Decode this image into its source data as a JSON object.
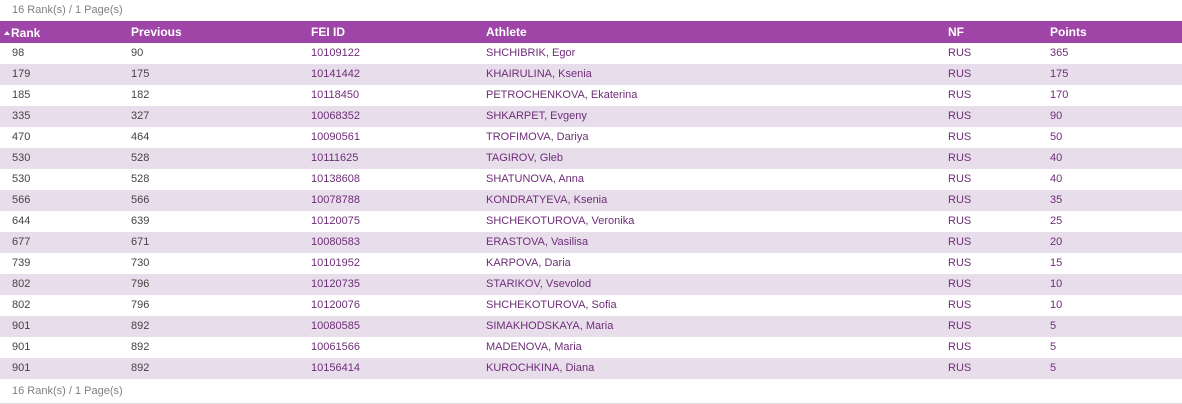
{
  "summary_text": "16 Rank(s) / 1 Page(s)",
  "accent_color": "#9f45a8",
  "sort": {
    "column": "Rank",
    "direction": "ascending",
    "icon": "sort-up-icon"
  },
  "columns": {
    "rank": "Rank",
    "previous": "Previous",
    "fei_id": "FEI ID",
    "athlete": "Athlete",
    "nf": "NF",
    "points": "Points"
  },
  "rows": [
    {
      "rank": "98",
      "previous": "90",
      "fei_id": "10109122",
      "athlete": "SHCHIBRIK, Egor",
      "nf": "RUS",
      "points": "365"
    },
    {
      "rank": "179",
      "previous": "175",
      "fei_id": "10141442",
      "athlete": "KHAIRULINA, Ksenia",
      "nf": "RUS",
      "points": "175"
    },
    {
      "rank": "185",
      "previous": "182",
      "fei_id": "10118450",
      "athlete": "PETROCHENKOVA, Ekaterina",
      "nf": "RUS",
      "points": "170"
    },
    {
      "rank": "335",
      "previous": "327",
      "fei_id": "10068352",
      "athlete": "SHKARPET, Evgeny",
      "nf": "RUS",
      "points": "90"
    },
    {
      "rank": "470",
      "previous": "464",
      "fei_id": "10090561",
      "athlete": "TROFIMOVA, Dariya",
      "nf": "RUS",
      "points": "50"
    },
    {
      "rank": "530",
      "previous": "528",
      "fei_id": "10111625",
      "athlete": "TAGIROV, Gleb",
      "nf": "RUS",
      "points": "40"
    },
    {
      "rank": "530",
      "previous": "528",
      "fei_id": "10138608",
      "athlete": "SHATUNOVA, Anna",
      "nf": "RUS",
      "points": "40"
    },
    {
      "rank": "566",
      "previous": "566",
      "fei_id": "10078788",
      "athlete": "KONDRATYEVA, Ksenia",
      "nf": "RUS",
      "points": "35"
    },
    {
      "rank": "644",
      "previous": "639",
      "fei_id": "10120075",
      "athlete": "SHCHEKOTUROVA, Veronika",
      "nf": "RUS",
      "points": "25"
    },
    {
      "rank": "677",
      "previous": "671",
      "fei_id": "10080583",
      "athlete": "ERASTOVA, Vasilisa",
      "nf": "RUS",
      "points": "20"
    },
    {
      "rank": "739",
      "previous": "730",
      "fei_id": "10101952",
      "athlete": "KARPOVA, Daria",
      "nf": "RUS",
      "points": "15"
    },
    {
      "rank": "802",
      "previous": "796",
      "fei_id": "10120735",
      "athlete": "STARIKOV, Vsevolod",
      "nf": "RUS",
      "points": "10"
    },
    {
      "rank": "802",
      "previous": "796",
      "fei_id": "10120076",
      "athlete": "SHCHEKOTUROVA, Sofia",
      "nf": "RUS",
      "points": "10"
    },
    {
      "rank": "901",
      "previous": "892",
      "fei_id": "10080585",
      "athlete": "SIMAKHODSKAYA, Maria",
      "nf": "RUS",
      "points": "5"
    },
    {
      "rank": "901",
      "previous": "892",
      "fei_id": "10061566",
      "athlete": "MADENOVA, Maria",
      "nf": "RUS",
      "points": "5"
    },
    {
      "rank": "901",
      "previous": "892",
      "fei_id": "10156414",
      "athlete": "KUROCHKINA, Diana",
      "nf": "RUS",
      "points": "5"
    }
  ]
}
